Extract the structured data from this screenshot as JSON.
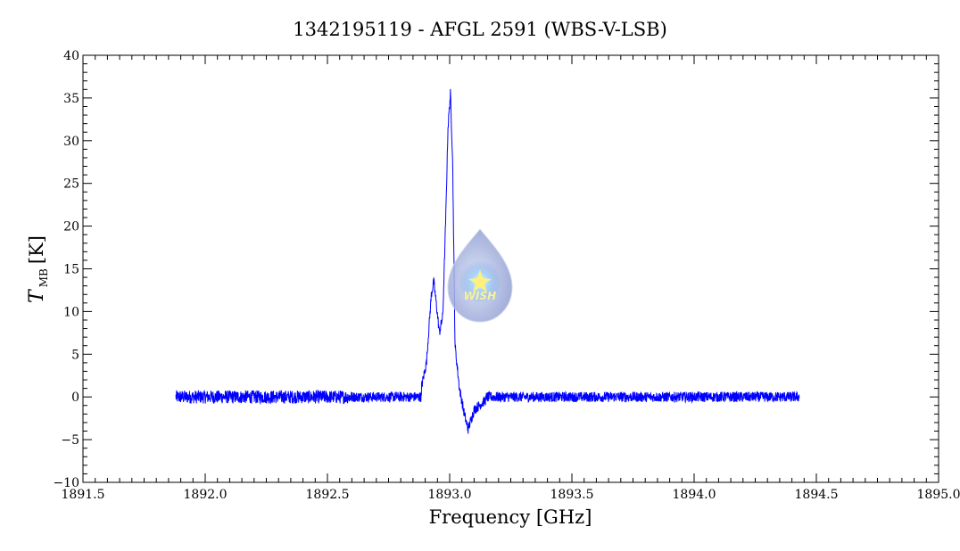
{
  "chart_data": {
    "type": "line",
    "title": "1342195119 - AFGL 2591 (WBS-V-LSB)",
    "xlabel": "Frequency [GHz]",
    "ylabel": {
      "symbol": "T",
      "subscript": "MB",
      "unit": "[K]"
    },
    "xlim": [
      1891.5,
      1895.0
    ],
    "ylim": [
      -10,
      40
    ],
    "x_ticks": [
      "1891.5",
      "1892.0",
      "1892.5",
      "1893.0",
      "1893.5",
      "1894.0",
      "1894.5",
      "1895.0"
    ],
    "y_ticks": [
      "−10",
      "−5",
      "0",
      "5",
      "10",
      "15",
      "20",
      "25",
      "30",
      "35",
      "40"
    ],
    "grid": false,
    "line_color": "#0000ff",
    "series": [
      {
        "x_range": [
          1891.88,
          1894.43
        ],
        "baseline": 0.0,
        "noise_amplitude_K": 0.6,
        "features": [
          {
            "x": 1892.885,
            "y": 1.2
          },
          {
            "x": 1892.905,
            "y": 4.0
          },
          {
            "x": 1892.925,
            "y": 12.0
          },
          {
            "x": 1892.935,
            "y": 13.5
          },
          {
            "x": 1892.945,
            "y": 11.0
          },
          {
            "x": 1892.958,
            "y": 7.5
          },
          {
            "x": 1892.972,
            "y": 9.5
          },
          {
            "x": 1892.985,
            "y": 22.0
          },
          {
            "x": 1892.993,
            "y": 31.5
          },
          {
            "x": 1893.003,
            "y": 35.5
          },
          {
            "x": 1893.012,
            "y": 28.0
          },
          {
            "x": 1893.022,
            "y": 6.0
          },
          {
            "x": 1893.04,
            "y": 1.0
          },
          {
            "x": 1893.06,
            "y": -2.0
          },
          {
            "x": 1893.075,
            "y": -3.8
          },
          {
            "x": 1893.1,
            "y": -1.5
          },
          {
            "x": 1893.15,
            "y": -0.3
          }
        ]
      }
    ]
  },
  "watermark": {
    "text": "WISH",
    "icon": "wish-drop-logo"
  }
}
